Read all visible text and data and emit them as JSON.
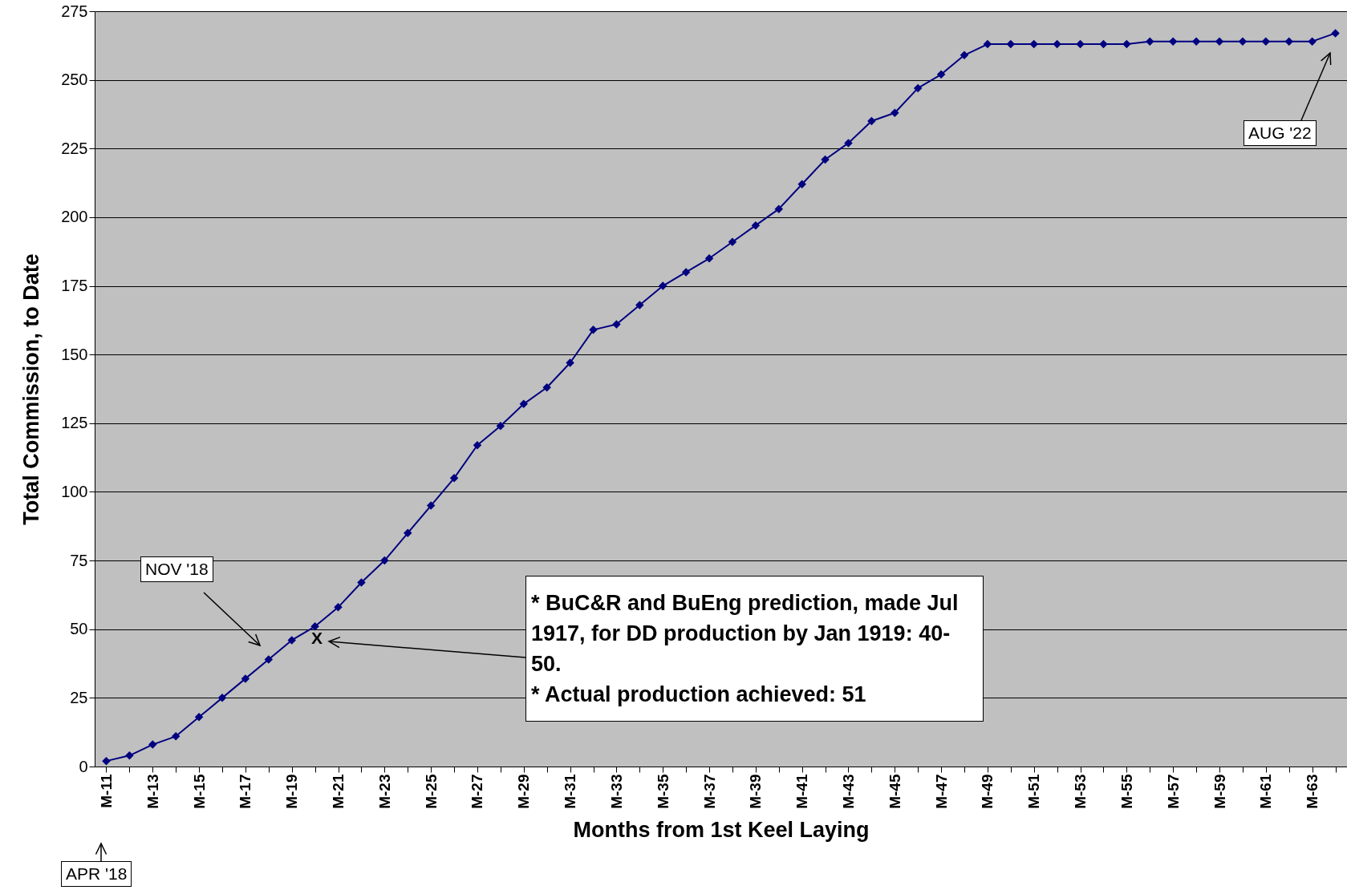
{
  "chart_data": {
    "type": "line",
    "xlabel": "Months from 1st Keel Laying",
    "ylabel": "Total Commission, to Date",
    "categories": [
      "M-11",
      null,
      "M-13",
      null,
      "M-15",
      null,
      "M-17",
      null,
      "M-19",
      null,
      "M-21",
      null,
      "M-23",
      null,
      "M-25",
      null,
      "M-27",
      null,
      "M-29",
      null,
      "M-31",
      null,
      "M-33",
      null,
      "M-35",
      null,
      "M-37",
      null,
      "M-39",
      null,
      "M-41",
      null,
      "M-43",
      null,
      "M-45",
      null,
      "M-47",
      null,
      "M-49",
      null,
      "M-51",
      null,
      "M-53",
      null,
      "M-55",
      null,
      "M-57",
      null,
      "M-59",
      null,
      "M-61",
      null,
      "M-63",
      null
    ],
    "series": [
      {
        "color": "#000080",
        "values": [
          2,
          4,
          8,
          11,
          18,
          25,
          32,
          39,
          46,
          51,
          58,
          67,
          75,
          85,
          95,
          105,
          117,
          124,
          132,
          138,
          147,
          159,
          161,
          168,
          175,
          180,
          185,
          191,
          197,
          203,
          212,
          221,
          227,
          235,
          238,
          247,
          252,
          259,
          263,
          263,
          263,
          263,
          263,
          263,
          263,
          264,
          264,
          264,
          264,
          264,
          264,
          264,
          264,
          267
        ]
      }
    ],
    "ylim": [
      0,
      275
    ],
    "yticks": [
      0,
      25,
      50,
      75,
      100,
      125,
      150,
      175,
      200,
      225,
      250,
      275
    ],
    "grid": "y",
    "marker": "diamond",
    "annotations": [
      "NOV '18",
      "APR '18",
      "AUG '22",
      "* BuC&R and BuEng prediction, made Jul 1917, for DD production by Jan 1919:  40-50.\n* Actual production achieved: 51",
      "X"
    ]
  }
}
